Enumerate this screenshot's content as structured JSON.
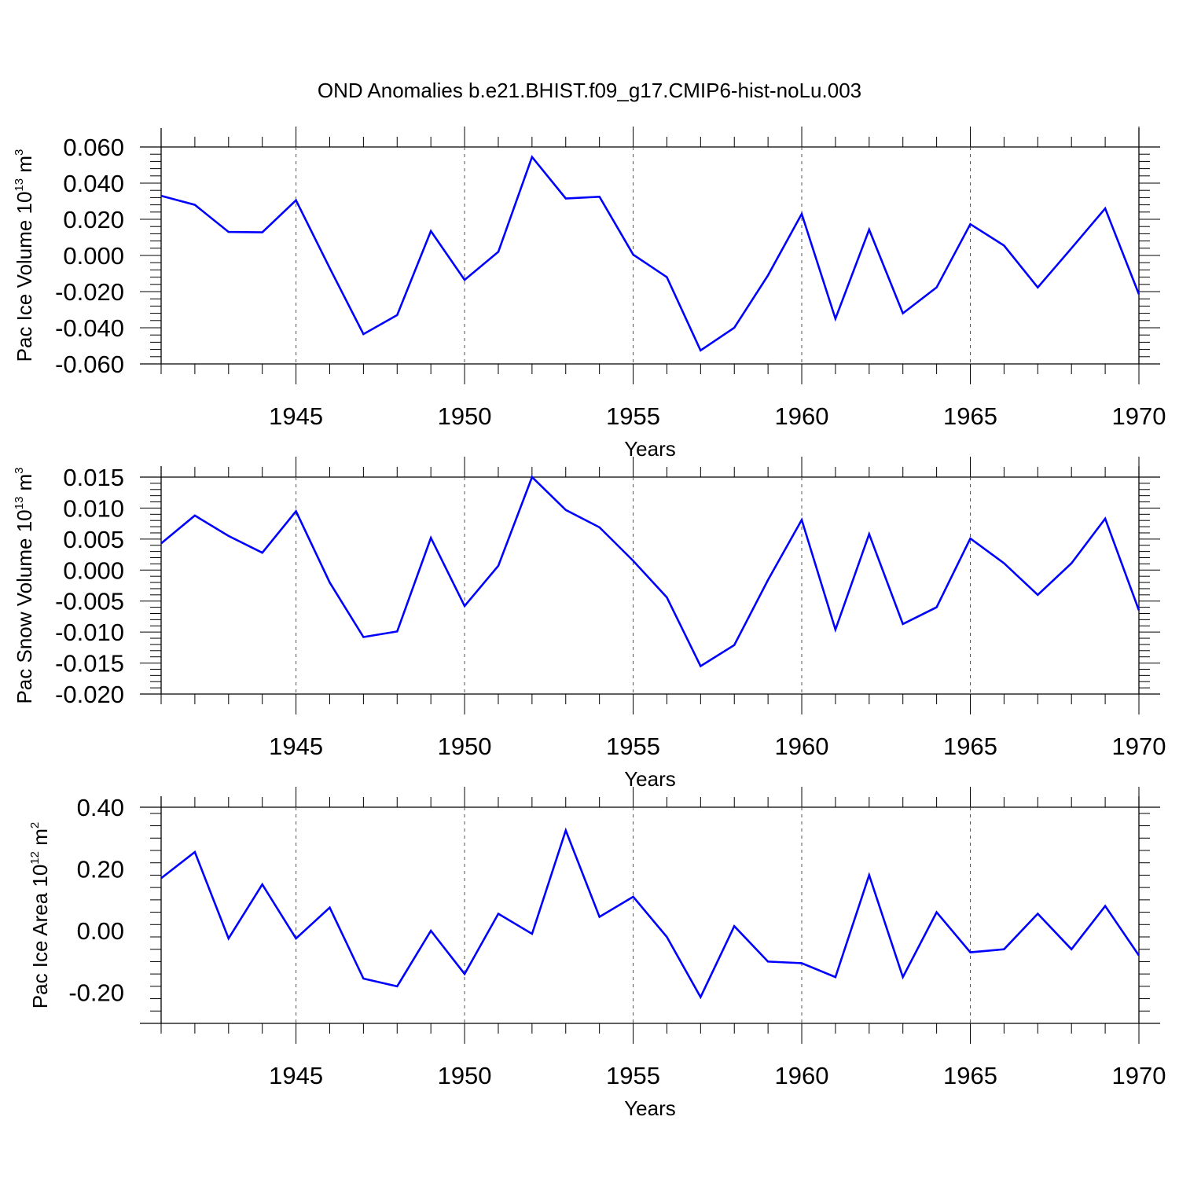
{
  "figure_title": "OND Anomalies b.e21.BHIST.f09_g17.CMIP6-hist-noLu.003",
  "colors": {
    "line": "#0000ff",
    "axis": "#000000",
    "grid": "#555555"
  },
  "chart_data": [
    {
      "type": "line",
      "title": "",
      "xlabel": "Years",
      "ylabel": "Pac Ice Volume 10",
      "ylabel_exponent": "13",
      "ylabel_unit": " m",
      "ylabel_unit_exponent": "3",
      "xlim": [
        1941,
        1970
      ],
      "ylim": [
        -0.06,
        0.06
      ],
      "xticks": [
        1945,
        1950,
        1955,
        1960,
        1965,
        1970
      ],
      "yticks": [
        -0.06,
        -0.04,
        -0.02,
        0.0,
        0.02,
        0.04,
        0.06
      ],
      "ytick_labels": [
        "-0.060",
        "-0.040",
        "-0.020",
        "0.000",
        "0.020",
        "0.040",
        "0.060"
      ],
      "grid": "vertical dashed at major x ticks",
      "x": [
        1941,
        1942,
        1943,
        1944,
        1945,
        1946,
        1947,
        1948,
        1949,
        1950,
        1951,
        1952,
        1953,
        1954,
        1955,
        1956,
        1957,
        1958,
        1959,
        1960,
        1961,
        1962,
        1963,
        1964,
        1965,
        1966,
        1967,
        1968,
        1969,
        1970
      ],
      "series": [
        {
          "name": "Pac Ice Volume",
          "values": [
            0.033,
            0.028,
            0.013,
            0.0128,
            0.0305,
            -0.007,
            -0.0435,
            -0.033,
            0.0135,
            -0.0135,
            0.002,
            0.0545,
            0.0315,
            0.0325,
            0.0005,
            -0.012,
            -0.0525,
            -0.04,
            -0.011,
            0.023,
            -0.035,
            0.0143,
            -0.032,
            -0.0177,
            0.0173,
            0.0055,
            -0.0177,
            0.004,
            0.026,
            -0.0215
          ]
        }
      ]
    },
    {
      "type": "line",
      "title": "",
      "xlabel": "Years",
      "ylabel": "Pac Snow Volume 10",
      "ylabel_exponent": "13",
      "ylabel_unit": " m",
      "ylabel_unit_exponent": "3",
      "xlim": [
        1941,
        1970
      ],
      "ylim": [
        -0.02,
        0.015
      ],
      "xticks": [
        1945,
        1950,
        1955,
        1960,
        1965,
        1970
      ],
      "yticks": [
        -0.02,
        -0.015,
        -0.01,
        -0.005,
        0.0,
        0.005,
        0.01,
        0.015
      ],
      "ytick_labels": [
        "-0.020",
        "-0.015",
        "-0.010",
        "-0.005",
        "0.000",
        "0.005",
        "0.010",
        "0.015"
      ],
      "grid": "vertical dashed at major x ticks",
      "x": [
        1941,
        1942,
        1943,
        1944,
        1945,
        1946,
        1947,
        1948,
        1949,
        1950,
        1951,
        1952,
        1953,
        1954,
        1955,
        1956,
        1957,
        1958,
        1959,
        1960,
        1961,
        1962,
        1963,
        1964,
        1965,
        1966,
        1967,
        1968,
        1969,
        1970
      ],
      "series": [
        {
          "name": "Pac Snow Volume",
          "values": [
            0.0043,
            0.0088,
            0.0055,
            0.0028,
            0.0095,
            -0.002,
            -0.0108,
            -0.0099,
            0.0052,
            -0.0058,
            0.0007,
            0.015,
            0.0097,
            0.0069,
            0.0015,
            -0.0044,
            -0.0155,
            -0.0121,
            -0.0016,
            0.0081,
            -0.0096,
            0.0058,
            -0.0087,
            -0.006,
            0.0051,
            0.0011,
            -0.004,
            0.0011,
            0.0083,
            -0.0065
          ]
        }
      ]
    },
    {
      "type": "line",
      "title": "",
      "xlabel": "Years",
      "ylabel": "Pac Ice Area 10",
      "ylabel_exponent": "12",
      "ylabel_unit": " m",
      "ylabel_unit_exponent": "2",
      "xlim": [
        1941,
        1970
      ],
      "ylim": [
        -0.3,
        0.4
      ],
      "xticks": [
        1945,
        1950,
        1955,
        1960,
        1965,
        1970
      ],
      "yticks": [
        -0.2,
        0.0,
        0.2,
        0.4
      ],
      "ytick_labels": [
        "-0.20",
        "0.00",
        "0.20",
        "0.40"
      ],
      "grid": "vertical dashed at major x ticks",
      "x": [
        1941,
        1942,
        1943,
        1944,
        1945,
        1946,
        1947,
        1948,
        1949,
        1950,
        1951,
        1952,
        1953,
        1954,
        1955,
        1956,
        1957,
        1958,
        1959,
        1960,
        1961,
        1962,
        1963,
        1964,
        1965,
        1966,
        1967,
        1968,
        1969,
        1970
      ],
      "series": [
        {
          "name": "Pac Ice Area",
          "values": [
            0.17,
            0.255,
            -0.025,
            0.15,
            -0.025,
            0.075,
            -0.155,
            -0.18,
            0.0,
            -0.14,
            0.055,
            -0.01,
            0.325,
            0.045,
            0.11,
            -0.02,
            -0.215,
            0.015,
            -0.1,
            -0.105,
            -0.15,
            0.18,
            -0.15,
            0.06,
            -0.07,
            -0.06,
            0.055,
            -0.06,
            0.08,
            -0.08
          ]
        }
      ]
    }
  ]
}
